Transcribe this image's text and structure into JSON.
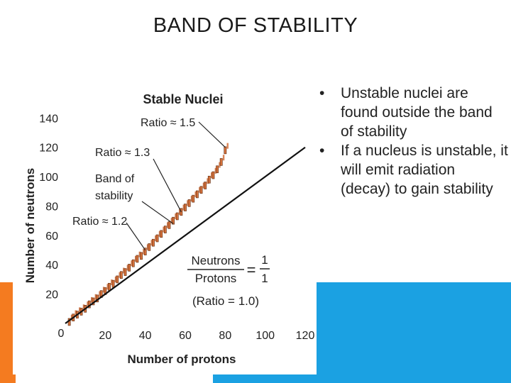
{
  "slide": {
    "title": "BAND OF STABILITY",
    "bullets": [
      "Unstable nuclei are found outside the band of stability",
      "If a nucleus is unstable, it will emit radiation (decay) to gain stability"
    ],
    "bullet_symbol": "•"
  },
  "colors": {
    "accent_orange": "#f47b20",
    "accent_blue": "#1ba1e2",
    "band_color": "#d4703a",
    "line_color": "#111111"
  },
  "chart_data": {
    "type": "scatter",
    "title": "Stable Nuclei",
    "xlabel": "Number of protons",
    "ylabel": "Number of neutrons",
    "xlim": [
      0,
      120
    ],
    "ylim": [
      0,
      145
    ],
    "xticks": [
      20,
      40,
      60,
      80,
      100,
      120
    ],
    "yticks": [
      20,
      40,
      60,
      80,
      100,
      120,
      140
    ],
    "origin_label": "0",
    "grid": false,
    "reference_line": {
      "ratio": 1.0,
      "points": [
        [
          0,
          0
        ],
        [
          120,
          120
        ]
      ],
      "label_fraction_lhs_top": "Neutrons",
      "label_fraction_lhs_bottom": "Protons",
      "label_equals": "=",
      "label_fraction_rhs_top": "1",
      "label_fraction_rhs_bottom": "1",
      "label_ratio": "(Ratio = 1.0)"
    },
    "annotations": [
      {
        "text": "Ratio ≈ 1.5",
        "target": [
          80,
          120
        ]
      },
      {
        "text": "Ratio ≈ 1.3",
        "target": [
          58,
          76
        ]
      },
      {
        "text": "Band of",
        "target": [
          54,
          68
        ]
      },
      {
        "text": "stability",
        "target": [
          54,
          68
        ]
      },
      {
        "text": "Ratio ≈ 1.2",
        "target": [
          40,
          50
        ]
      }
    ],
    "band": {
      "label": "Band of stability",
      "points": [
        [
          2,
          1
        ],
        [
          4,
          4
        ],
        [
          6,
          6
        ],
        [
          8,
          8
        ],
        [
          10,
          10
        ],
        [
          12,
          13
        ],
        [
          14,
          15
        ],
        [
          16,
          17
        ],
        [
          18,
          20
        ],
        [
          20,
          22
        ],
        [
          22,
          25
        ],
        [
          24,
          27
        ],
        [
          26,
          30
        ],
        [
          28,
          33
        ],
        [
          30,
          35
        ],
        [
          32,
          38
        ],
        [
          34,
          41
        ],
        [
          36,
          44
        ],
        [
          38,
          46
        ],
        [
          40,
          49
        ],
        [
          42,
          52
        ],
        [
          44,
          55
        ],
        [
          46,
          58
        ],
        [
          48,
          61
        ],
        [
          50,
          64
        ],
        [
          52,
          67
        ],
        [
          54,
          70
        ],
        [
          56,
          73
        ],
        [
          58,
          76
        ],
        [
          60,
          79
        ],
        [
          62,
          82
        ],
        [
          64,
          85
        ],
        [
          66,
          88
        ],
        [
          68,
          91
        ],
        [
          70,
          94
        ],
        [
          72,
          98
        ],
        [
          74,
          101
        ],
        [
          76,
          105
        ],
        [
          78,
          110
        ],
        [
          80,
          118
        ]
      ]
    }
  }
}
